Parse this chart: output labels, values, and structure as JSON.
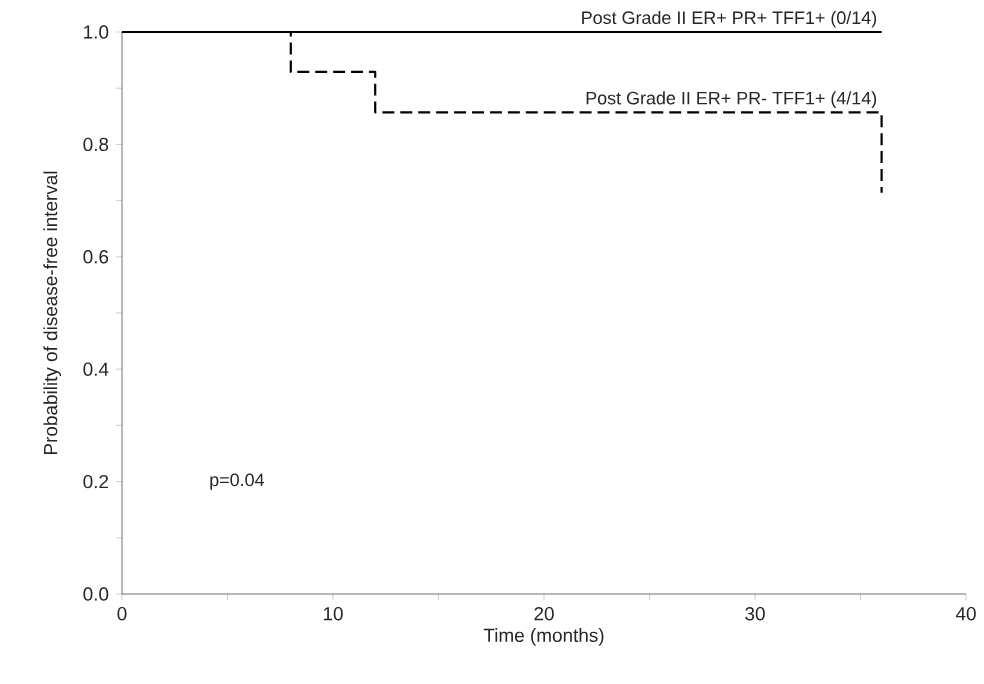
{
  "chart_data": {
    "type": "step",
    "xlabel": "Time (months)",
    "ylabel": "Probability of disease-free interval",
    "xlim": [
      0,
      40
    ],
    "ylim": [
      0,
      1.0
    ],
    "xticks": [
      0,
      {
        "value": 5,
        "label": null
      },
      10,
      {
        "value": 15,
        "label": null
      },
      20,
      {
        "value": 25,
        "label": null
      },
      30,
      {
        "value": 35,
        "label": null
      },
      40
    ],
    "yticks": [
      {
        "value": 0,
        "label": "0.0"
      },
      {
        "value": 0.1,
        "label": null
      },
      0.2,
      {
        "value": 0.3,
        "label": null
      },
      0.4,
      {
        "value": 0.5,
        "label": null
      },
      0.6,
      {
        "value": 0.7,
        "label": null
      },
      0.8,
      {
        "value": 0.9,
        "label": null
      },
      {
        "value": 1.0,
        "label": "1.0"
      }
    ],
    "series": [
      {
        "name": "Post  Grade II  ER+  PR+  TFF1+  (0/14)",
        "color": "#000000",
        "line_style": "solid",
        "x": [
          0,
          36
        ],
        "values": [
          1.0,
          1.0
        ]
      },
      {
        "name": "Post  Grade II  ER+  PR-  TFF1+  (4/14)",
        "color": "#000000",
        "line_style": "dashed",
        "x": [
          0,
          8,
          12,
          36,
          36
        ],
        "values": [
          1.0,
          0.929,
          0.857,
          0.857,
          0.714
        ]
      }
    ],
    "annotations": [
      "p=0.04"
    ],
    "grid": false,
    "marker": "none"
  }
}
